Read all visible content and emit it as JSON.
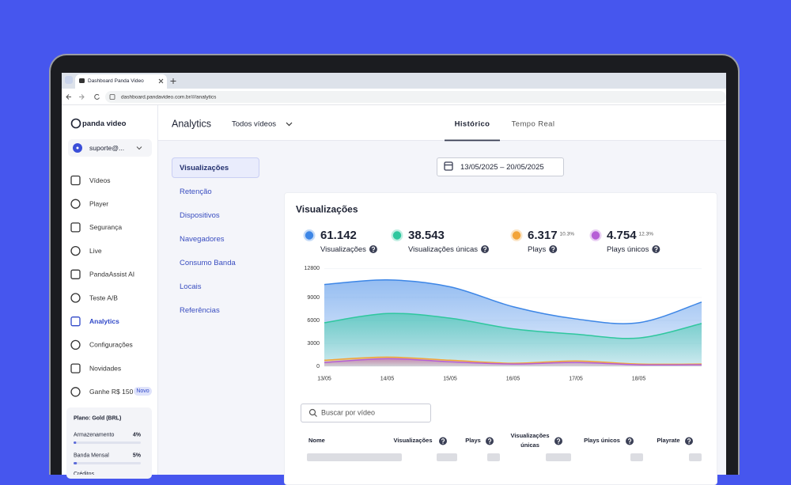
{
  "browser": {
    "tab_title": "Dashboard Panda Video",
    "url": "dashboard.pandavideo.com.br/#/analytics"
  },
  "sidebar": {
    "logo": "panda video",
    "account": "suporte@...",
    "nav": [
      "Vídeos",
      "Player",
      "Segurança",
      "Live",
      "PandaAssist AI",
      "Teste A/B",
      "Analytics",
      "Configurações",
      "Novidades",
      "Ganhe R$ 150"
    ],
    "active": 6,
    "badge": "Novo",
    "plan": "Plano: Gold (BRL)",
    "usage": [
      {
        "label": "Armazenamento",
        "value": 4,
        "value_label": "4%"
      },
      {
        "label": "Banda Mensal",
        "value": 5,
        "value_label": "5%"
      }
    ],
    "credits": "Créditos"
  },
  "header": {
    "title": "Analytics",
    "filter": "Todos vídeos",
    "tabs": [
      "Histórico",
      "Tempo Real"
    ],
    "active_tab": 0
  },
  "submenu": {
    "items": [
      "Visualizações",
      "Retenção",
      "Dispositivos",
      "Navegadores",
      "Consumo Banda",
      "Locais",
      "Referências"
    ],
    "active": 0
  },
  "date_range": "13/05/2025 – 20/05/2025",
  "chart_data": {
    "type": "area",
    "title": "Visualizações",
    "categories": [
      "13/05",
      "14/05",
      "15/05",
      "16/05",
      "17/05",
      "18/05",
      null
    ],
    "ylim": [
      0,
      12800
    ],
    "yticks": [
      0,
      3000,
      6000,
      9000,
      12800
    ],
    "series": [
      {
        "name": "Visualizações",
        "value_label": "61.142",
        "color": "#3d86e6",
        "values": [
          10700,
          11300,
          10400,
          7800,
          6200,
          5700,
          8400
        ]
      },
      {
        "name": "Visualizações únicas",
        "value_label": "38.543",
        "color": "#2fc79e",
        "values": [
          5700,
          6900,
          6300,
          4900,
          4200,
          3700,
          5600
        ]
      },
      {
        "name": "Plays",
        "value_label": "6.317",
        "delta": "10.3%",
        "color": "#f2a43a",
        "values": [
          800,
          1200,
          800,
          400,
          700,
          300,
          300
        ]
      },
      {
        "name": "Plays únicos",
        "value_label": "4.754",
        "delta": "12.3%",
        "color": "#b65fd6",
        "values": [
          500,
          1000,
          600,
          300,
          500,
          200,
          200
        ]
      }
    ]
  },
  "table": {
    "search_placeholder": "Buscar por vídeo",
    "columns": [
      "Nome",
      "Visualizações",
      "Plays",
      "Visualizações únicas",
      "Plays únicos",
      "Playrate"
    ]
  }
}
